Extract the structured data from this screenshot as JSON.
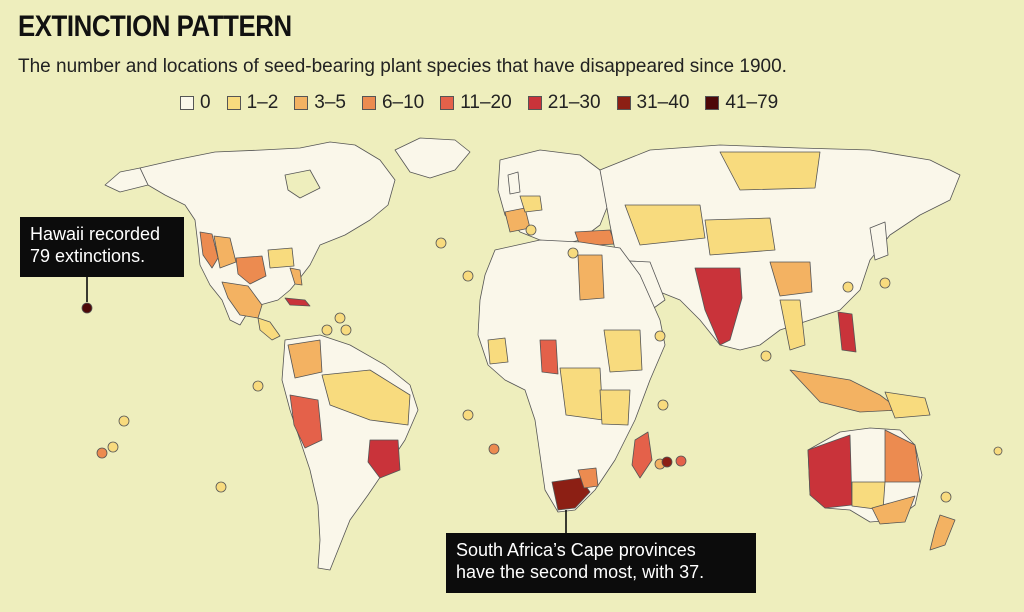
{
  "title": "EXTINCTION PATTERN",
  "subtitle": "The number and locations of seed-bearing plant species that have disappeared since 1900.",
  "legend": [
    {
      "label": "0",
      "color": "#faf7ea"
    },
    {
      "label": "1–2",
      "color": "#f8db7e"
    },
    {
      "label": "3–5",
      "color": "#f3b262"
    },
    {
      "label": "6–10",
      "color": "#ec8b50"
    },
    {
      "label": "11–20",
      "color": "#e4614a"
    },
    {
      "label": "21–30",
      "color": "#c9333a"
    },
    {
      "label": "31–40",
      "color": "#8c1f14"
    },
    {
      "label": "41–79",
      "color": "#4d0808"
    }
  ],
  "callouts": {
    "hawaii": [
      "Hawaii recorded",
      "79 extinctions."
    ],
    "south_africa": [
      "South Africa’s Cape provinces",
      "have the second most, with 37."
    ]
  },
  "colors": {
    "background": "#eeeebd",
    "land_zero": "#faf7ea",
    "border": "#555555",
    "callout_bg": "#0c0c0c"
  }
}
